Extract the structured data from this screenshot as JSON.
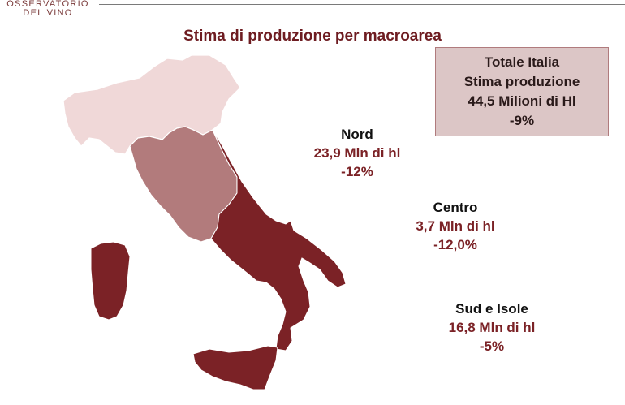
{
  "header": {
    "logo_line1": "OSSERVATORIO",
    "logo_line2": "DEL VINO"
  },
  "title": "Stima di produzione per macroarea",
  "total": {
    "line1": "Totale Italia",
    "line2": "Stima produzione",
    "line3": "44,5 Milioni di Hl",
    "line4": "-9%"
  },
  "regions": [
    {
      "name": "Nord",
      "value": "23,9 Mln di hl",
      "delta": "-12%",
      "color": "#f0d8d8"
    },
    {
      "name": "Centro",
      "value": "3,7 Mln di hl",
      "delta": "-12,0%",
      "color": "#b27b7c"
    },
    {
      "name": "Sud e Isole",
      "value": "16,8 Mln di hl",
      "delta": "-5%",
      "color": "#7b2226"
    }
  ],
  "colors": {
    "title": "#6e1c21",
    "accent": "#7b2226",
    "box_fill": "#dcc6c6",
    "box_border": "#b07b7d"
  }
}
